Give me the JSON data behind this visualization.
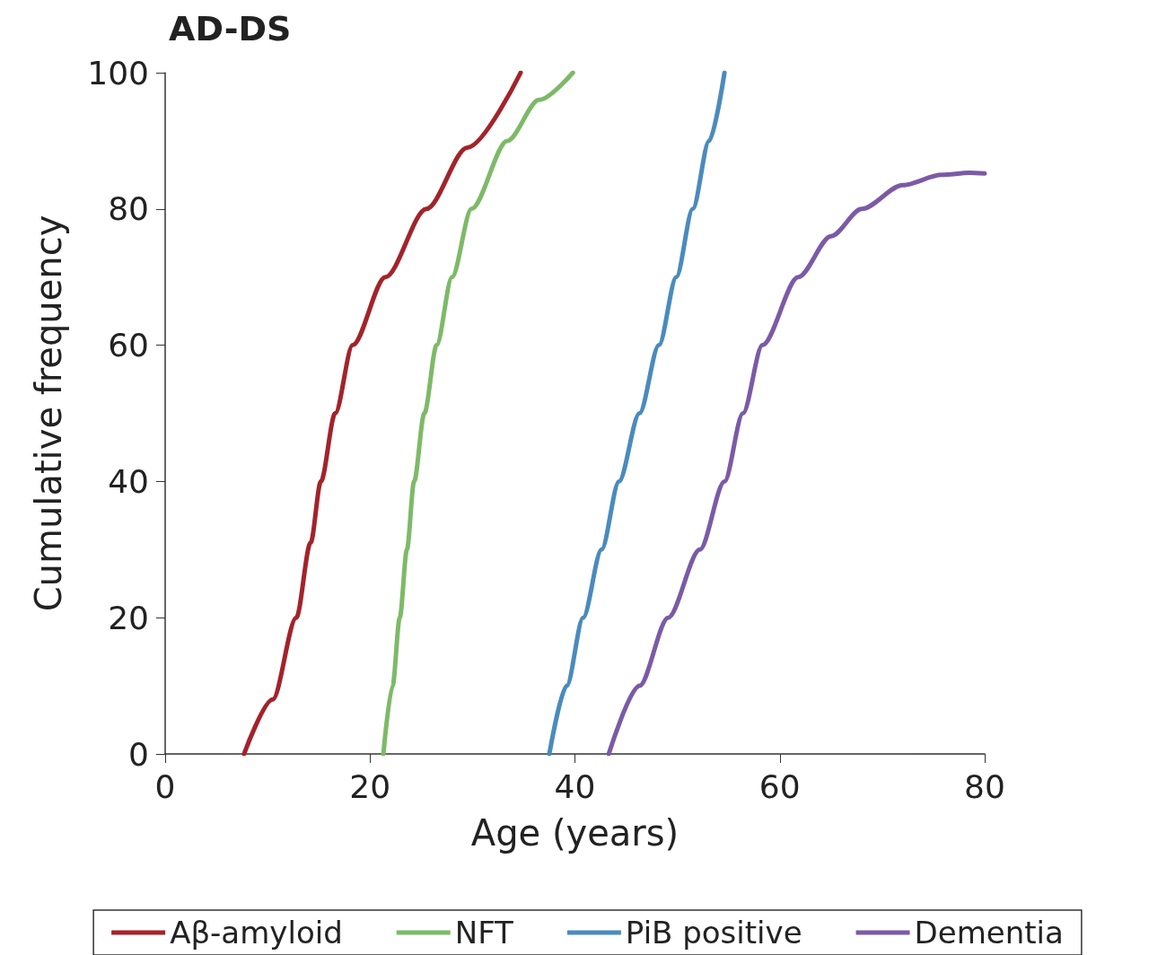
{
  "chart_data": {
    "type": "line",
    "title": "AD-DS",
    "xlabel": "Age (years)",
    "ylabel": "Cumulative frequency",
    "xlim": [
      0,
      80
    ],
    "xticks": [
      0,
      20,
      40,
      60,
      80
    ],
    "ylim": [
      0,
      100
    ],
    "yticks": [
      0,
      20,
      40,
      60,
      80,
      100
    ],
    "grid": false,
    "legend": "bottom",
    "marker": "none",
    "line_style": "solid",
    "series": [
      {
        "name": "Aβ-amyloid",
        "color": "#a3232a",
        "x": [
          7.7,
          10.5,
          12.8,
          14.2,
          15.2,
          16.6,
          18.3,
          21.5,
          25.5,
          29.5,
          34.7
        ],
        "values": [
          0,
          8,
          20,
          31,
          40,
          50,
          60,
          70,
          80,
          89,
          100
        ]
      },
      {
        "name": "NFT",
        "color": "#7dba67",
        "x": [
          21.3,
          22.2,
          22.9,
          23.6,
          24.3,
          25.3,
          26.5,
          28.0,
          29.9,
          33.4,
          36.5,
          39.8
        ],
        "values": [
          0,
          10,
          20,
          30,
          40,
          50,
          60,
          70,
          80,
          90,
          96,
          100
        ]
      },
      {
        "name": "PiB positive",
        "color": "#4a8bbd",
        "x": [
          37.5,
          39.2,
          40.8,
          42.6,
          44.3,
          46.3,
          48.2,
          49.9,
          51.5,
          53.1,
          54.6
        ],
        "values": [
          0,
          10,
          20,
          30,
          40,
          50,
          60,
          70,
          80,
          90,
          100
        ]
      },
      {
        "name": "Dementia",
        "color": "#7b5aa6",
        "x": [
          43.3,
          46.3,
          49.1,
          52.2,
          54.6,
          56.4,
          58.3,
          61.8,
          65.0,
          68.0,
          72.0,
          75.8,
          78.5,
          80
        ],
        "values": [
          0,
          10,
          20,
          30,
          40,
          50,
          60,
          70,
          76,
          80,
          83.5,
          85,
          85.3,
          85.2
        ]
      }
    ]
  }
}
